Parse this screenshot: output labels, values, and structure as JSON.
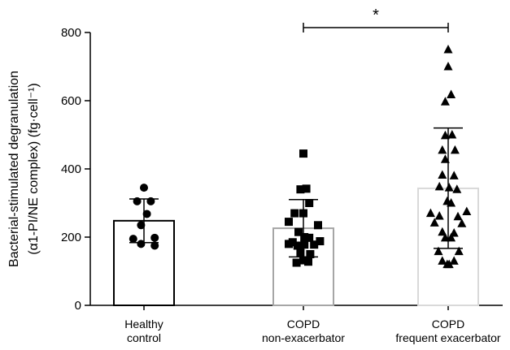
{
  "chart_data": {
    "type": "scatter",
    "ylabel_line1": "Bacterial-stimulated degranulation",
    "ylabel_line2": "(α1-PI/NE complex) (fg·cell⁻¹)",
    "ylim": [
      0,
      800
    ],
    "yticks": [
      "0",
      "200",
      "400",
      "600",
      "800"
    ],
    "grid": false,
    "groups": [
      {
        "label_line1": "Healthy",
        "label_line2": "control",
        "marker": "circle",
        "bar_color": "#000000",
        "mean": 248,
        "sd_upper": 312,
        "sd_lower": 184,
        "points": [
          {
            "offset": 0.0,
            "value": 345
          },
          {
            "offset": -0.35,
            "value": 305
          },
          {
            "offset": 0.35,
            "value": 305
          },
          {
            "offset": 0.15,
            "value": 268
          },
          {
            "offset": -0.15,
            "value": 235
          },
          {
            "offset": -0.55,
            "value": 195
          },
          {
            "offset": 0.55,
            "value": 198
          },
          {
            "offset": -0.15,
            "value": 180
          },
          {
            "offset": 0.55,
            "value": 175
          }
        ]
      },
      {
        "label_line1": "COPD",
        "label_line2": "non-exacerbator",
        "marker": "square",
        "bar_color": "#a6a6a6",
        "mean": 226,
        "sd_upper": 310,
        "sd_lower": 142,
        "points": [
          {
            "offset": 0.0,
            "value": 445
          },
          {
            "offset": -0.15,
            "value": 340
          },
          {
            "offset": 0.15,
            "value": 342
          },
          {
            "offset": 0.3,
            "value": 300
          },
          {
            "offset": -0.45,
            "value": 270
          },
          {
            "offset": 0.0,
            "value": 270
          },
          {
            "offset": -0.75,
            "value": 245
          },
          {
            "offset": 0.75,
            "value": 235
          },
          {
            "offset": -0.25,
            "value": 215
          },
          {
            "offset": 0.05,
            "value": 200
          },
          {
            "offset": 0.3,
            "value": 198
          },
          {
            "offset": -0.55,
            "value": 185
          },
          {
            "offset": 0.85,
            "value": 188
          },
          {
            "offset": -0.75,
            "value": 180
          },
          {
            "offset": -0.3,
            "value": 175
          },
          {
            "offset": 0.05,
            "value": 178
          },
          {
            "offset": 0.55,
            "value": 178
          },
          {
            "offset": -0.15,
            "value": 155
          },
          {
            "offset": 0.35,
            "value": 150
          },
          {
            "offset": 0.0,
            "value": 132
          },
          {
            "offset": -0.35,
            "value": 125
          },
          {
            "offset": 0.25,
            "value": 128
          }
        ]
      },
      {
        "label_line1": "COPD",
        "label_line2": "frequent exacerbator",
        "marker": "triangle",
        "bar_color": "#d9d9d9",
        "mean": 343,
        "sd_upper": 520,
        "sd_lower": 167,
        "points": [
          {
            "offset": 0.0,
            "value": 750
          },
          {
            "offset": 0.0,
            "value": 700
          },
          {
            "offset": 0.15,
            "value": 618
          },
          {
            "offset": -0.15,
            "value": 597
          },
          {
            "offset": -0.15,
            "value": 498
          },
          {
            "offset": 0.2,
            "value": 500
          },
          {
            "offset": -0.3,
            "value": 455
          },
          {
            "offset": 0.35,
            "value": 455
          },
          {
            "offset": -0.15,
            "value": 428
          },
          {
            "offset": -0.3,
            "value": 382
          },
          {
            "offset": 0.3,
            "value": 380
          },
          {
            "offset": -0.45,
            "value": 348
          },
          {
            "offset": 0.05,
            "value": 345
          },
          {
            "offset": 0.45,
            "value": 340
          },
          {
            "offset": -0.05,
            "value": 305
          },
          {
            "offset": 0.15,
            "value": 300
          },
          {
            "offset": -0.9,
            "value": 270
          },
          {
            "offset": -0.45,
            "value": 262
          },
          {
            "offset": 0.5,
            "value": 260
          },
          {
            "offset": 0.95,
            "value": 275
          },
          {
            "offset": -0.7,
            "value": 242
          },
          {
            "offset": 0.7,
            "value": 240
          },
          {
            "offset": -0.3,
            "value": 215
          },
          {
            "offset": 0.3,
            "value": 212
          },
          {
            "offset": -0.15,
            "value": 198
          },
          {
            "offset": 0.15,
            "value": 198
          },
          {
            "offset": -0.5,
            "value": 158
          },
          {
            "offset": 0.55,
            "value": 158
          },
          {
            "offset": -0.3,
            "value": 130
          },
          {
            "offset": 0.3,
            "value": 130
          },
          {
            "offset": -0.05,
            "value": 120
          },
          {
            "offset": 0.05,
            "value": 120
          }
        ]
      }
    ],
    "significance": {
      "from_group": 1,
      "to_group": 2,
      "label": "*"
    }
  }
}
